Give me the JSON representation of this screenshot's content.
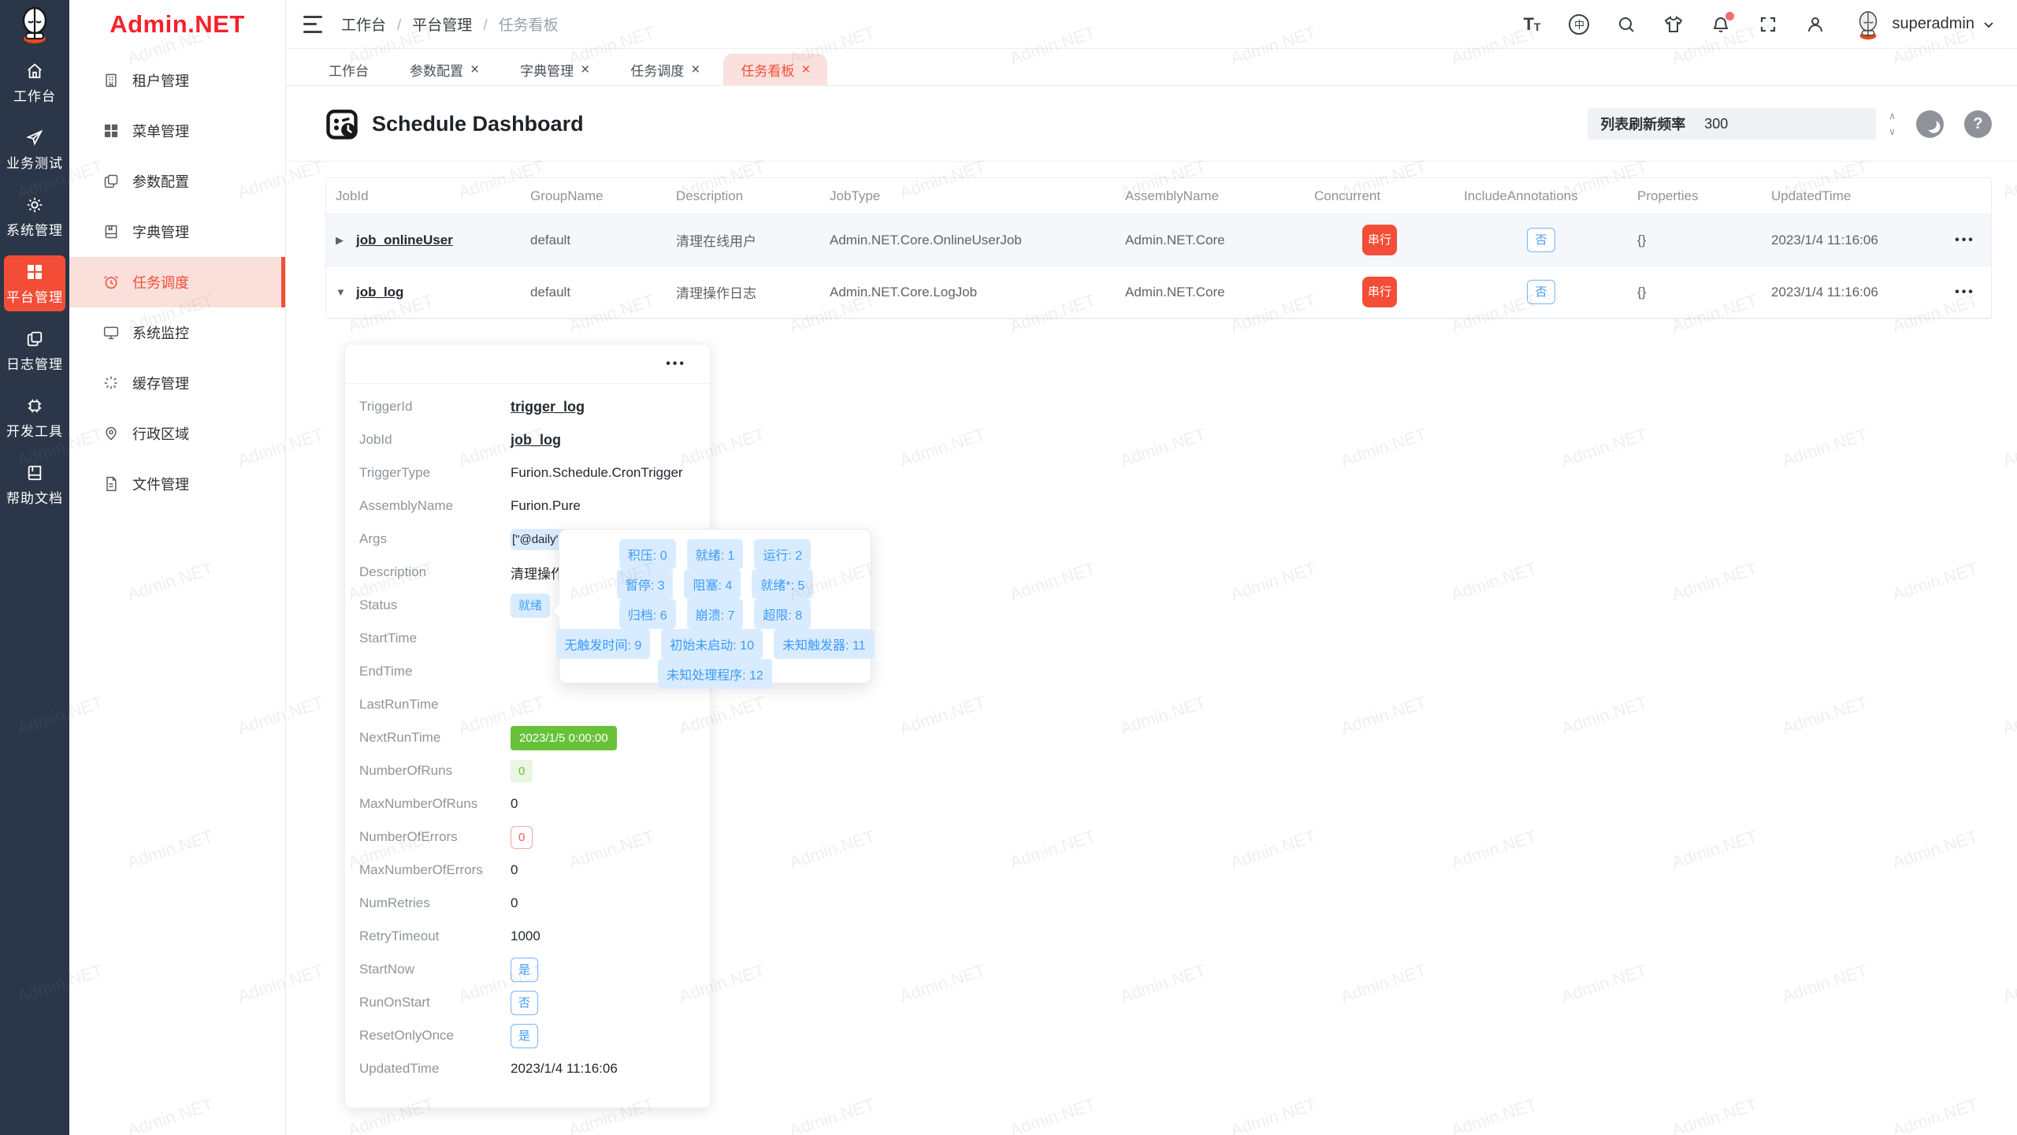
{
  "app": {
    "logo_text": "Admin.NET",
    "watermark": "Admin.NET",
    "accent_color": "#f34d37",
    "rail_bg": "#2b3648"
  },
  "rail": {
    "items": [
      {
        "icon": "home-icon",
        "label": "工作台",
        "active": false
      },
      {
        "icon": "send-icon",
        "label": "业务测试",
        "active": false
      },
      {
        "icon": "gear-icon",
        "label": "系统管理",
        "active": false
      },
      {
        "icon": "grid-icon",
        "label": "平台管理",
        "active": true
      },
      {
        "icon": "docs-icon",
        "label": "日志管理",
        "active": false
      },
      {
        "icon": "chip-icon",
        "label": "开发工具",
        "active": false
      },
      {
        "icon": "book-icon",
        "label": "帮助文档",
        "active": false
      }
    ]
  },
  "sidebar": {
    "items": [
      {
        "icon": "building-icon",
        "label": "租户管理",
        "active": false
      },
      {
        "icon": "menu-grid-icon",
        "label": "菜单管理",
        "active": false
      },
      {
        "icon": "copy-icon",
        "label": "参数配置",
        "active": false
      },
      {
        "icon": "dict-book-icon",
        "label": "字典管理",
        "active": false
      },
      {
        "icon": "alarm-clock-icon",
        "label": "任务调度",
        "active": true
      },
      {
        "icon": "monitor-icon",
        "label": "系统监控",
        "active": false
      },
      {
        "icon": "cache-icon",
        "label": "缓存管理",
        "active": false
      },
      {
        "icon": "location-pin-icon",
        "label": "行政区域",
        "active": false
      },
      {
        "icon": "file-icon",
        "label": "文件管理",
        "active": false
      }
    ]
  },
  "navbar": {
    "breadcrumb": [
      "工作台",
      "平台管理",
      "任务看板"
    ],
    "username": "superadmin",
    "icons": [
      "font-size-icon",
      "language-icon",
      "search-icon",
      "theme-shirt-icon",
      "bell-icon",
      "fullscreen-icon",
      "person-icon"
    ]
  },
  "tabs": [
    {
      "label": "工作台",
      "closable": false,
      "active": false
    },
    {
      "label": "参数配置",
      "closable": true,
      "active": false
    },
    {
      "label": "字典管理",
      "closable": true,
      "active": false
    },
    {
      "label": "任务调度",
      "closable": true,
      "active": false
    },
    {
      "label": "任务看板",
      "closable": true,
      "active": true
    }
  ],
  "page": {
    "title": "Schedule Dashboard",
    "refresh": {
      "label": "列表刷新频率",
      "value": "300"
    }
  },
  "table": {
    "columns": [
      "JobId",
      "GroupName",
      "Description",
      "JobType",
      "AssemblyName",
      "Concurrent",
      "IncludeAnnotations",
      "Properties",
      "UpdatedTime"
    ],
    "rows": [
      {
        "expanded": false,
        "job_id": "job_onlineUser",
        "group": "default",
        "description": "清理在线用户",
        "job_type": "Admin.NET.Core.OnlineUserJob",
        "assembly": "Admin.NET.Core",
        "concurrent": "串行",
        "include_annotations": "否",
        "properties": "{}",
        "updated": "2023/1/4 11:16:06"
      },
      {
        "expanded": true,
        "job_id": "job_log",
        "group": "default",
        "description": "清理操作日志",
        "job_type": "Admin.NET.Core.LogJob",
        "assembly": "Admin.NET.Core",
        "concurrent": "串行",
        "include_annotations": "否",
        "properties": "{}",
        "updated": "2023/1/4 11:16:06"
      }
    ]
  },
  "detail": {
    "fields": [
      {
        "label": "TriggerId",
        "value": "trigger_log",
        "type": "link"
      },
      {
        "label": "JobId",
        "value": "job_log",
        "type": "link"
      },
      {
        "label": "TriggerType",
        "value": "Furion.Schedule.CronTrigger",
        "type": "text"
      },
      {
        "label": "AssemblyName",
        "value": "Furion.Pure",
        "type": "text"
      },
      {
        "label": "Args",
        "value": "[\"@daily\"]",
        "type": "tag-args"
      },
      {
        "label": "Description",
        "value": "清理操作日志",
        "type": "text"
      },
      {
        "label": "Status",
        "value": "就绪",
        "type": "tag-info"
      },
      {
        "label": "StartTime",
        "value": "",
        "type": "text"
      },
      {
        "label": "EndTime",
        "value": "",
        "type": "text"
      },
      {
        "label": "LastRunTime",
        "value": "",
        "type": "text"
      },
      {
        "label": "NextRunTime",
        "value": "2023/1/5 0:00:00",
        "type": "tag-success-filled"
      },
      {
        "label": "NumberOfRuns",
        "value": "0",
        "type": "tag-success-light"
      },
      {
        "label": "MaxNumberOfRuns",
        "value": "0",
        "type": "text"
      },
      {
        "label": "NumberOfErrors",
        "value": "0",
        "type": "tag-danger-outline"
      },
      {
        "label": "MaxNumberOfErrors",
        "value": "0",
        "type": "text"
      },
      {
        "label": "NumRetries",
        "value": "0",
        "type": "text"
      },
      {
        "label": "RetryTimeout",
        "value": "1000",
        "type": "text"
      },
      {
        "label": "StartNow",
        "value": "是",
        "type": "tag-primary-outline"
      },
      {
        "label": "RunOnStart",
        "value": "否",
        "type": "tag-primary-outline"
      },
      {
        "label": "ResetOnlyOnce",
        "value": "是",
        "type": "tag-primary-outline"
      },
      {
        "label": "UpdatedTime",
        "value": "2023/1/4 11:16:06",
        "type": "text"
      }
    ]
  },
  "status_tooltip": {
    "rows": [
      [
        "积压: 0",
        "就绪: 1",
        "运行: 2"
      ],
      [
        "暂停: 3",
        "阻塞: 4",
        "就绪*: 5"
      ],
      [
        "归档: 6",
        "崩溃: 7",
        "超限: 8"
      ],
      [
        "无触发时间: 9",
        "初始未启动: 10",
        "未知触发器: 11"
      ],
      [
        "未知处理程序: 12"
      ]
    ]
  }
}
